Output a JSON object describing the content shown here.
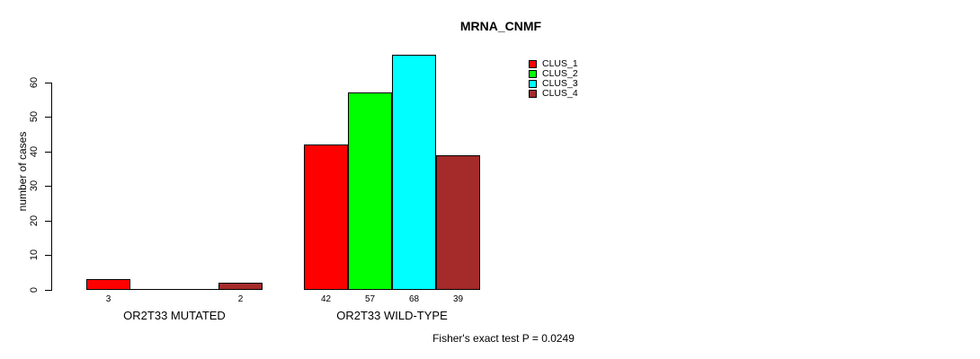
{
  "chart_data": {
    "type": "bar",
    "title": "MRNA_CNMF",
    "ylabel": "number of cases",
    "xlabel": "",
    "categories": [
      "OR2T33 MUTATED",
      "OR2T33 WILD-TYPE"
    ],
    "series": [
      {
        "name": "CLUS_1",
        "color": "#ff0000",
        "values": [
          3,
          42
        ]
      },
      {
        "name": "CLUS_2",
        "color": "#00ff00",
        "values": [
          0,
          57
        ]
      },
      {
        "name": "CLUS_3",
        "color": "#00ffff",
        "values": [
          0,
          68
        ]
      },
      {
        "name": "CLUS_4",
        "color": "#a52a2a",
        "values": [
          2,
          39
        ]
      }
    ],
    "yticks": [
      0,
      10,
      20,
      30,
      40,
      50,
      60
    ],
    "ylim": [
      0,
      68
    ],
    "grid": false,
    "legend_position": "top-right",
    "annotation": "Fisher's exact test P = 0.0249"
  }
}
